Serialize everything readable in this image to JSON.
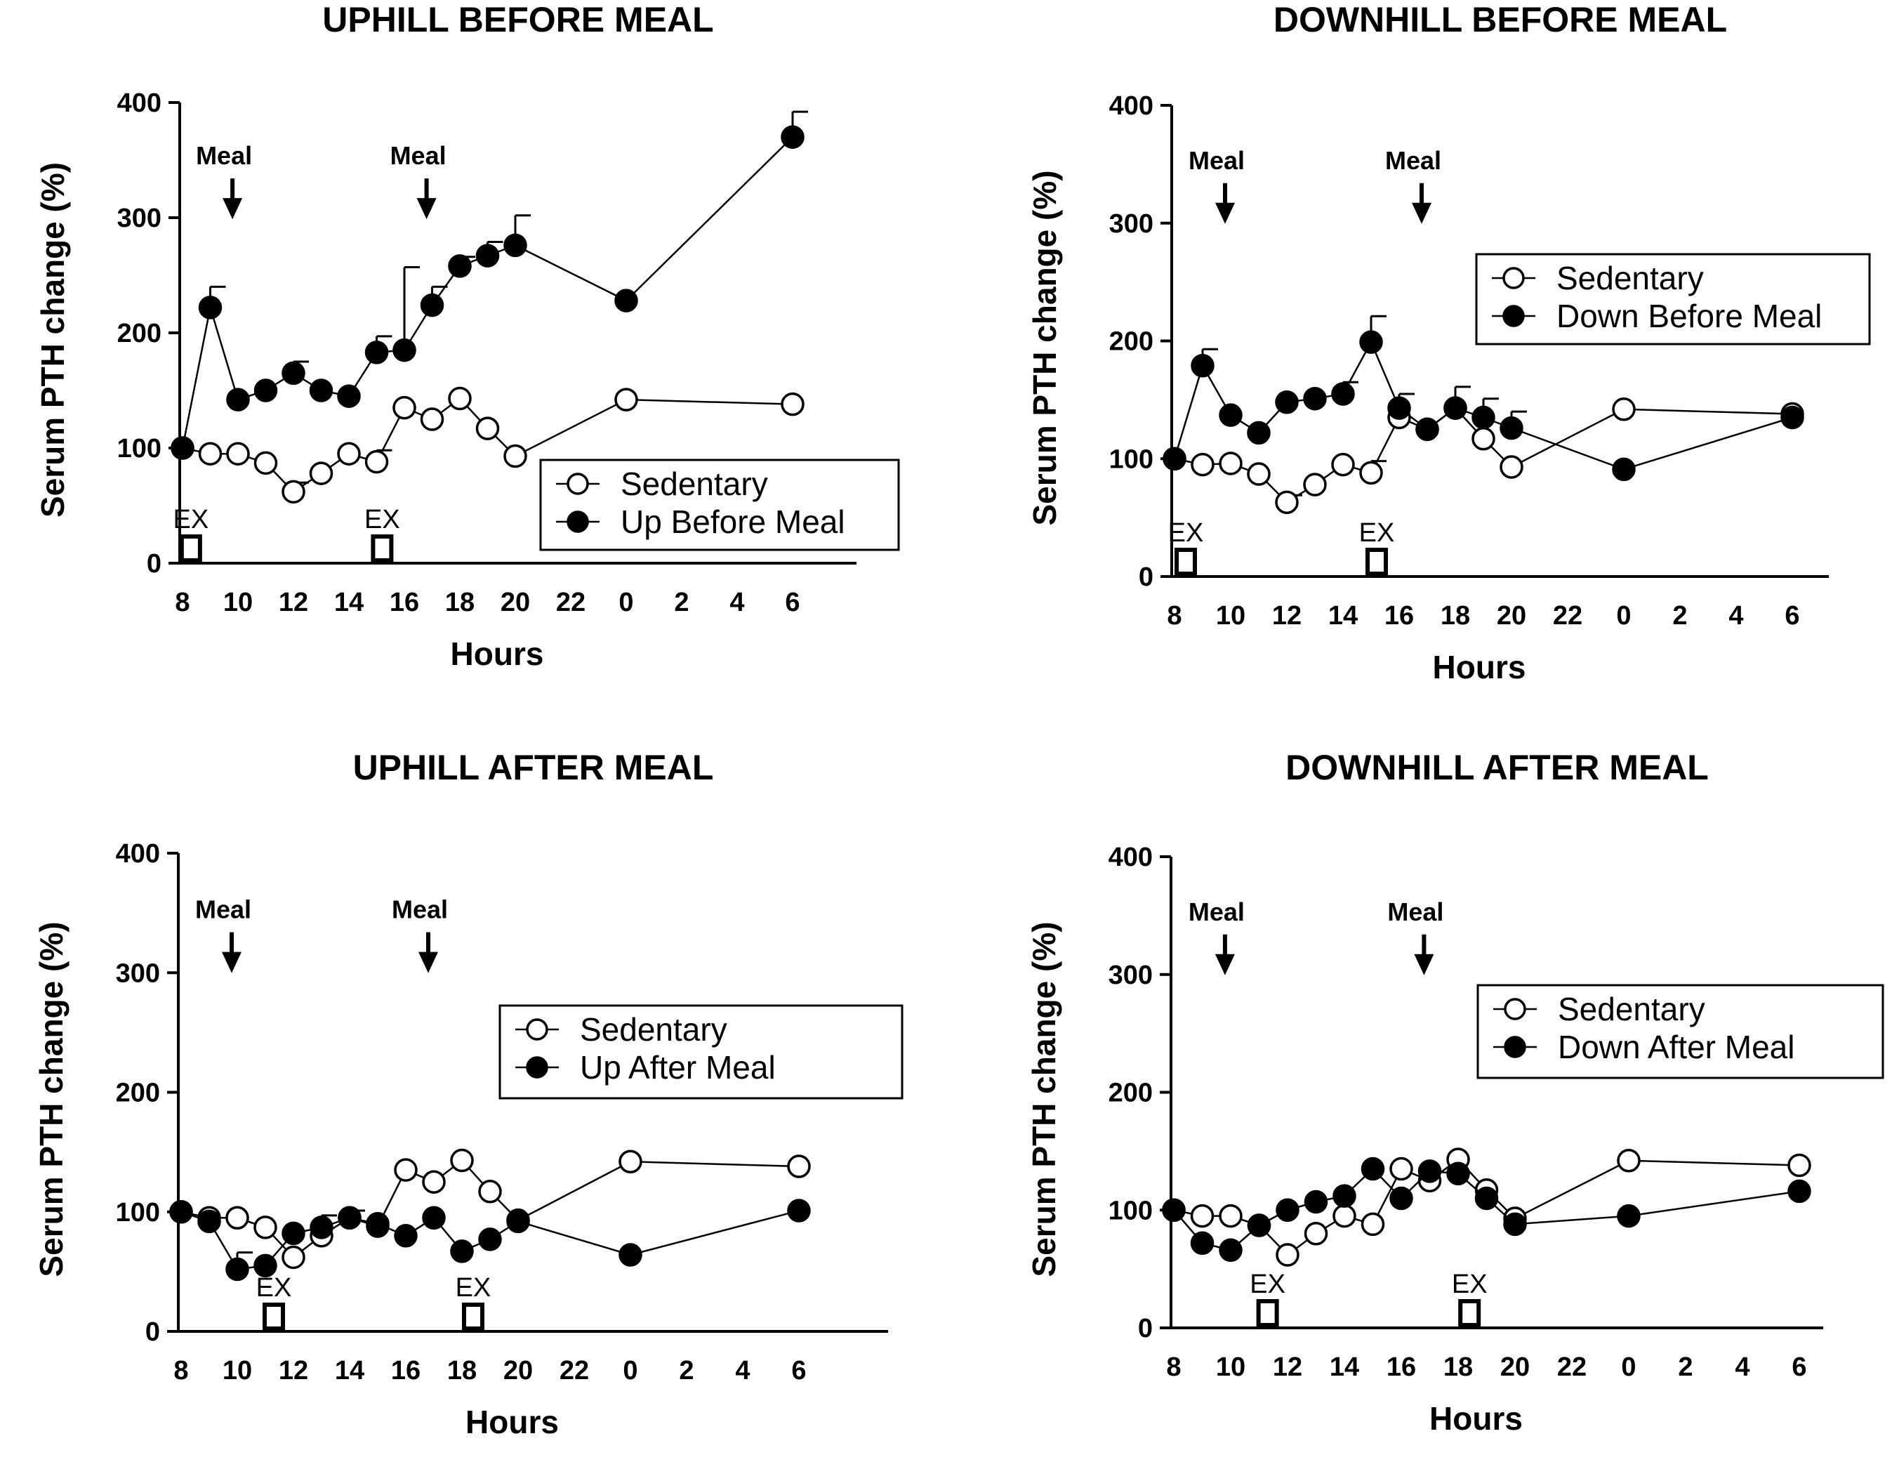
{
  "chart_data": [
    {
      "type": "line",
      "title": "UPHILL BEFORE MEAL",
      "xlabel": "Hours",
      "ylabel": "Serum PTH change (%)",
      "ylim": [
        0,
        400
      ],
      "yticks": [
        "0",
        "100",
        "200",
        "300",
        "400"
      ],
      "xticks": [
        "8",
        "10",
        "12",
        "14",
        "16",
        "18",
        "20",
        "22",
        "0",
        "2",
        "4",
        "6"
      ],
      "legend": "bottom-right",
      "annotations": {
        "meal": [
          "Meal",
          "Meal"
        ],
        "meal_at": [
          9.8,
          16.8
        ],
        "ex": [
          "EX",
          "EX"
        ],
        "ex_at": [
          8.3,
          15.2
        ]
      },
      "series": [
        {
          "name": "Sedentary",
          "marker": "open",
          "x": [
            8,
            9,
            10,
            11,
            12,
            13,
            14,
            15,
            16,
            17,
            18,
            19,
            20,
            24,
            30
          ],
          "y": [
            100,
            95,
            95,
            87,
            62,
            78,
            95,
            88,
            135,
            125,
            143,
            117,
            93,
            142,
            138
          ],
          "err": [
            0,
            0,
            0,
            0,
            8,
            0,
            0,
            10,
            0,
            0,
            0,
            0,
            0,
            0,
            0
          ]
        },
        {
          "name": "Up Before Meal",
          "marker": "filled",
          "x": [
            8,
            9,
            10,
            11,
            12,
            13,
            14,
            15,
            16,
            17,
            18,
            19,
            20,
            24,
            30
          ],
          "y": [
            100,
            222,
            142,
            150,
            165,
            150,
            145,
            183,
            185,
            224,
            258,
            267,
            276,
            228,
            370
          ],
          "err": [
            0,
            18,
            0,
            0,
            10,
            0,
            0,
            14,
            72,
            16,
            8,
            12,
            26,
            0,
            22
          ]
        }
      ]
    },
    {
      "type": "line",
      "title": "DOWNHILL BEFORE MEAL",
      "xlabel": "Hours",
      "ylabel": "Serum PTH change (%)",
      "ylim": [
        0,
        400
      ],
      "yticks": [
        "0",
        "100",
        "200",
        "300",
        "400"
      ],
      "xticks": [
        "8",
        "10",
        "12",
        "14",
        "16",
        "18",
        "20",
        "22",
        "0",
        "2",
        "4",
        "6"
      ],
      "legend": "top-right",
      "annotations": {
        "meal": [
          "Meal",
          "Meal"
        ],
        "meal_at": [
          9.8,
          16.8
        ],
        "ex": [
          "EX",
          "EX"
        ],
        "ex_at": [
          8.4,
          15.2
        ]
      },
      "series": [
        {
          "name": "Sedentary",
          "marker": "open",
          "x": [
            8,
            9,
            10,
            11,
            12,
            13,
            14,
            15,
            16,
            17,
            18,
            19,
            20,
            24,
            30
          ],
          "y": [
            100,
            95,
            96,
            87,
            63,
            78,
            95,
            88,
            135,
            125,
            143,
            117,
            93,
            142,
            138
          ],
          "err": [
            0,
            0,
            0,
            0,
            6,
            0,
            0,
            10,
            0,
            0,
            0,
            0,
            0,
            0,
            0
          ]
        },
        {
          "name": "Down Before Meal",
          "marker": "filled",
          "x": [
            8,
            9,
            10,
            11,
            12,
            13,
            14,
            15,
            16,
            17,
            18,
            19,
            20,
            24,
            30
          ],
          "y": [
            100,
            179,
            137,
            122,
            148,
            151,
            155,
            199,
            143,
            125,
            143,
            135,
            126,
            91,
            135
          ],
          "err": [
            0,
            14,
            0,
            0,
            0,
            0,
            10,
            22,
            12,
            0,
            18,
            16,
            14,
            0,
            0
          ]
        }
      ]
    },
    {
      "type": "line",
      "title": "UPHILL AFTER MEAL",
      "xlabel": "Hours",
      "ylabel": "Serum PTH change (%)",
      "ylim": [
        0,
        400
      ],
      "yticks": [
        "0",
        "100",
        "200",
        "300",
        "400"
      ],
      "xticks": [
        "8",
        "10",
        "12",
        "14",
        "16",
        "18",
        "20",
        "22",
        "0",
        "2",
        "4",
        "6"
      ],
      "legend": "center-right",
      "annotations": {
        "meal": [
          "Meal",
          "Meal"
        ],
        "meal_at": [
          9.8,
          16.8
        ],
        "ex": [
          "EX",
          "EX"
        ],
        "ex_at": [
          11.3,
          18.4
        ]
      },
      "series": [
        {
          "name": "Sedentary",
          "marker": "open",
          "x": [
            8,
            9,
            10,
            11,
            12,
            13,
            14,
            15,
            16,
            17,
            18,
            19,
            20,
            24,
            30
          ],
          "y": [
            100,
            95,
            95,
            87,
            62,
            80,
            95,
            88,
            135,
            125,
            143,
            117,
            93,
            142,
            138
          ],
          "err": [
            0,
            0,
            0,
            0,
            0,
            0,
            0,
            0,
            0,
            0,
            0,
            0,
            0,
            0,
            0
          ]
        },
        {
          "name": "Up After Meal",
          "marker": "filled",
          "x": [
            8,
            9,
            10,
            11,
            12,
            13,
            14,
            15,
            16,
            17,
            18,
            19,
            20,
            24,
            30
          ],
          "y": [
            100,
            92,
            52,
            55,
            82,
            87,
            95,
            90,
            80,
            95,
            67,
            77,
            92,
            64,
            101
          ],
          "err": [
            0,
            0,
            14,
            0,
            0,
            10,
            6,
            0,
            0,
            0,
            0,
            0,
            0,
            0,
            0
          ]
        }
      ]
    },
    {
      "type": "line",
      "title": "DOWNHILL AFTER MEAL",
      "xlabel": "Hours",
      "ylabel": "Serum PTH change (%)",
      "ylim": [
        0,
        400
      ],
      "yticks": [
        "0",
        "100",
        "200",
        "300",
        "400"
      ],
      "xticks": [
        "8",
        "10",
        "12",
        "14",
        "16",
        "18",
        "20",
        "22",
        "0",
        "2",
        "4",
        "6"
      ],
      "legend": "center-right",
      "annotations": {
        "meal": [
          "Meal",
          "Meal"
        ],
        "meal_at": [
          9.8,
          16.8
        ],
        "ex": [
          "EX",
          "EX"
        ],
        "ex_at": [
          11.3,
          18.4
        ]
      },
      "series": [
        {
          "name": "Sedentary",
          "marker": "open",
          "x": [
            8,
            9,
            10,
            11,
            12,
            13,
            14,
            15,
            16,
            17,
            18,
            19,
            20,
            24,
            30
          ],
          "y": [
            100,
            95,
            95,
            87,
            62,
            80,
            95,
            88,
            135,
            125,
            143,
            117,
            93,
            142,
            138
          ],
          "err": [
            0,
            0,
            0,
            0,
            0,
            0,
            0,
            0,
            0,
            0,
            0,
            0,
            0,
            0,
            0
          ]
        },
        {
          "name": "Down After Meal",
          "marker": "filled",
          "x": [
            8,
            9,
            10,
            11,
            12,
            13,
            14,
            15,
            16,
            17,
            18,
            19,
            20,
            24,
            30
          ],
          "y": [
            100,
            72,
            66,
            87,
            100,
            107,
            112,
            135,
            110,
            133,
            131,
            110,
            88,
            95,
            116
          ],
          "err": [
            0,
            0,
            0,
            0,
            0,
            0,
            0,
            0,
            0,
            0,
            0,
            0,
            0,
            0,
            0
          ]
        }
      ]
    }
  ]
}
